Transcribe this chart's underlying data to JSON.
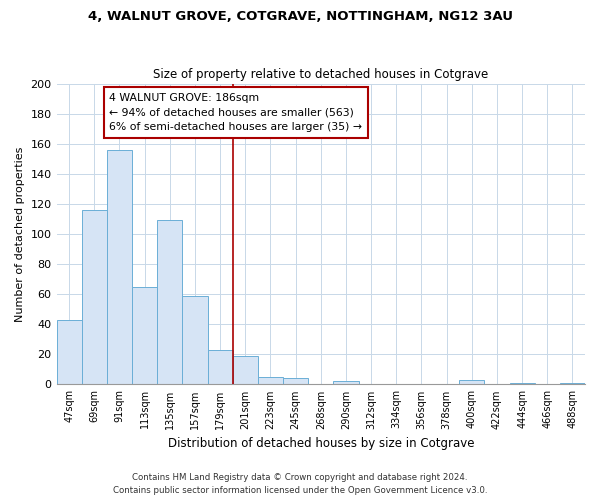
{
  "title": "4, WALNUT GROVE, COTGRAVE, NOTTINGHAM, NG12 3AU",
  "subtitle": "Size of property relative to detached houses in Cotgrave",
  "xlabel": "Distribution of detached houses by size in Cotgrave",
  "ylabel": "Number of detached properties",
  "bar_labels": [
    "47sqm",
    "69sqm",
    "91sqm",
    "113sqm",
    "135sqm",
    "157sqm",
    "179sqm",
    "201sqm",
    "223sqm",
    "245sqm",
    "268sqm",
    "290sqm",
    "312sqm",
    "334sqm",
    "356sqm",
    "378sqm",
    "400sqm",
    "422sqm",
    "444sqm",
    "466sqm",
    "488sqm"
  ],
  "bar_values": [
    43,
    116,
    156,
    65,
    109,
    59,
    23,
    19,
    5,
    4,
    0,
    2,
    0,
    0,
    0,
    0,
    3,
    0,
    1,
    0,
    1
  ],
  "bar_color": "#d6e4f5",
  "bar_edge_color": "#6baed6",
  "vline_x": 6.5,
  "vline_color": "#aa0000",
  "annotation_title": "4 WALNUT GROVE: 186sqm",
  "annotation_line1": "← 94% of detached houses are smaller (563)",
  "annotation_line2": "6% of semi-detached houses are larger (35) →",
  "annotation_box_color": "#ffffff",
  "annotation_box_edge": "#aa0000",
  "footer_line1": "Contains HM Land Registry data © Crown copyright and database right 2024.",
  "footer_line2": "Contains public sector information licensed under the Open Government Licence v3.0.",
  "ylim": [
    0,
    200
  ],
  "yticks": [
    0,
    20,
    40,
    60,
    80,
    100,
    120,
    140,
    160,
    180,
    200
  ],
  "figsize": [
    6.0,
    5.0
  ],
  "dpi": 100
}
